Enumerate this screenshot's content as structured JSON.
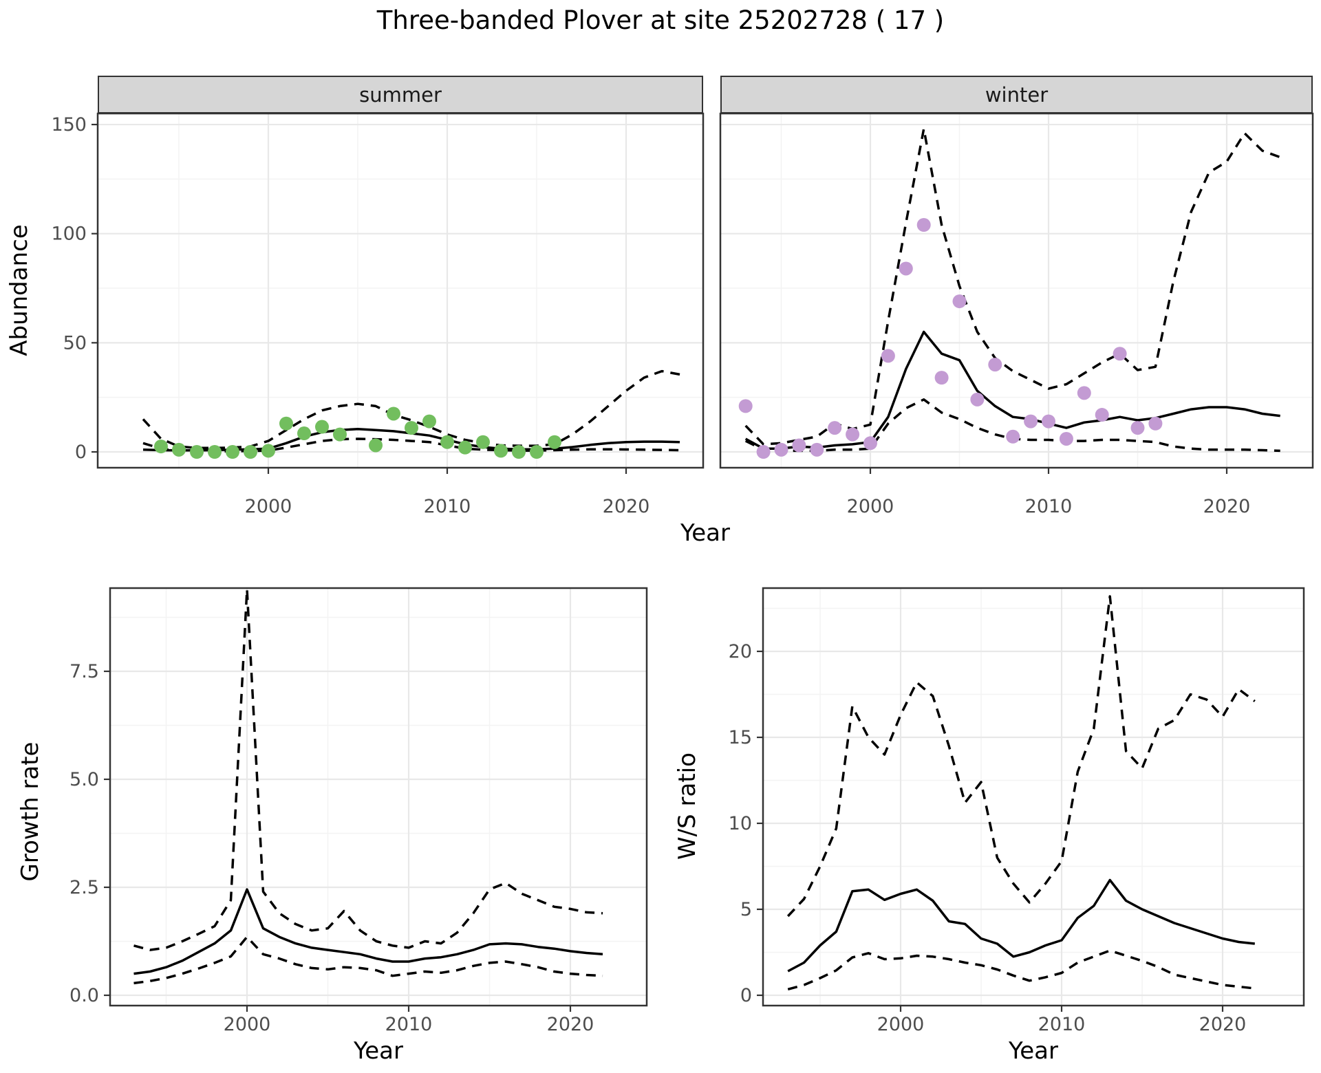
{
  "title": "Three-banded Plover at site 25202728 ( 17 )",
  "colors": {
    "summer_point": "#72be5e",
    "winter_point": "#c39bd3",
    "line": "#000000",
    "strip_bg": "#d6d6d6",
    "grid_major": "#e8e8e8",
    "grid_minor": "#f3f3f3",
    "axis_text": "#4d4d4d",
    "panel_border": "#333333"
  },
  "facets": {
    "summer_label": "summer",
    "winter_label": "winter"
  },
  "axes": {
    "abundance_label": "Abundance",
    "year_label": "Year",
    "growth_label": "Growth rate",
    "ws_label": "W/S ratio"
  },
  "chart_data": [
    {
      "id": "abundance_summer",
      "type": "line",
      "facet": "summer",
      "xlabel": "Year",
      "ylabel": "Abundance",
      "xlim": [
        1990.5,
        2024.5
      ],
      "ylim": [
        -7.5,
        155.5
      ],
      "xticks": {
        "values": [
          2000,
          2010,
          2020
        ],
        "labels": [
          "2000",
          "2010",
          "2020"
        ]
      },
      "yticks": {
        "values": [
          0,
          50,
          100,
          150
        ],
        "labels": [
          "0",
          "50",
          "100",
          "150"
        ]
      },
      "grid": "on",
      "points": {
        "years": [
          1994,
          1995,
          1996,
          1997,
          1998,
          1999,
          2000,
          2001,
          2002,
          2003,
          2004,
          2006,
          2007,
          2008,
          2009,
          2010,
          2011,
          2012,
          2013,
          2014,
          2015,
          2016
        ],
        "values": [
          2.5,
          1,
          0,
          0,
          0,
          0,
          0.5,
          13,
          8.5,
          11.5,
          8,
          3,
          17.5,
          11,
          14,
          4.5,
          2,
          4.5,
          0.5,
          0,
          0,
          4.5
        ]
      },
      "fit": {
        "years": [
          1993,
          1994,
          1995,
          1996,
          1997,
          1998,
          1999,
          2000,
          2001,
          2002,
          2003,
          2004,
          2005,
          2006,
          2007,
          2008,
          2009,
          2010,
          2011,
          2012,
          2013,
          2014,
          2015,
          2016,
          2017,
          2018,
          2019,
          2020,
          2021,
          2022,
          2023
        ],
        "values": [
          1.0,
          0.8,
          0.7,
          0.7,
          0.8,
          1.0,
          1.2,
          1.5,
          4,
          7,
          9,
          10,
          10.5,
          10,
          9.5,
          8.5,
          7.5,
          5.5,
          3.5,
          2.2,
          1.5,
          1.2,
          1.2,
          1.5,
          2.2,
          3.2,
          4.0,
          4.5,
          4.7,
          4.7,
          4.5
        ]
      },
      "upper_ci": {
        "years": [
          1993,
          1994,
          1995,
          1996,
          1997,
          1998,
          1999,
          2000,
          2001,
          2002,
          2003,
          2004,
          2005,
          2006,
          2007,
          2008,
          2009,
          2010,
          2011,
          2012,
          2013,
          2014,
          2015,
          2016,
          2017,
          2018,
          2019,
          2020,
          2021,
          2022,
          2023
        ],
        "values": [
          15,
          6,
          2.5,
          1.8,
          1.8,
          2,
          2.5,
          5,
          10,
          15,
          19,
          21,
          22,
          21,
          17,
          14.5,
          11.5,
          8,
          5.5,
          4,
          3,
          2.8,
          2.8,
          3.5,
          8,
          14,
          21,
          28,
          34,
          37,
          35.5
        ]
      },
      "lower_ci": {
        "years": [
          1993,
          1994,
          1995,
          1996,
          1997,
          1998,
          1999,
          2000,
          2001,
          2002,
          2003,
          2004,
          2005,
          2006,
          2007,
          2008,
          2009,
          2010,
          2011,
          2012,
          2013,
          2014,
          2015,
          2016,
          2017,
          2018,
          2019,
          2020,
          2021,
          2022,
          2023
        ],
        "values": [
          4,
          1.5,
          0.3,
          0.2,
          0.2,
          0.3,
          0.4,
          0.6,
          2,
          3.5,
          5,
          5.8,
          6,
          5.8,
          5.5,
          5,
          4.5,
          3,
          1.5,
          1,
          0.8,
          0.6,
          0.6,
          0.8,
          1,
          1.2,
          1.2,
          1.1,
          1,
          0.9,
          0.8
        ]
      }
    },
    {
      "id": "abundance_winter",
      "type": "line",
      "facet": "winter",
      "xlabel": "Year",
      "ylabel": "Abundance",
      "xlim": [
        1991.5,
        2024.8
      ],
      "ylim": [
        -7.5,
        155.5
      ],
      "xticks": {
        "values": [
          2000,
          2010,
          2020
        ],
        "labels": [
          "2000",
          "2010",
          "2020"
        ]
      },
      "yticks": {
        "values": [
          0,
          50,
          100,
          150
        ],
        "labels": [
          "0",
          "50",
          "100",
          "150"
        ]
      },
      "grid": "on",
      "points": {
        "years": [
          1993,
          1994,
          1995,
          1996,
          1997,
          1998,
          1999,
          2000,
          2001,
          2002,
          2003,
          2004,
          2005,
          2006,
          2007,
          2008,
          2009,
          2010,
          2011,
          2012,
          2013,
          2014,
          2015,
          2016
        ],
        "values": [
          21,
          0,
          1,
          3,
          1,
          11,
          8,
          4,
          44,
          84,
          104,
          34,
          69,
          24,
          40,
          7,
          14,
          14,
          6,
          27,
          17,
          45,
          11,
          13
        ]
      },
      "fit": {
        "years": [
          1993,
          1994,
          1995,
          1996,
          1997,
          1998,
          1999,
          2000,
          2001,
          2002,
          2003,
          2004,
          2005,
          2006,
          2007,
          2008,
          2009,
          2010,
          2011,
          2012,
          2013,
          2014,
          2015,
          2016,
          2017,
          2018,
          2019,
          2020,
          2021,
          2022,
          2023
        ],
        "values": [
          6,
          1.5,
          1.5,
          2.5,
          2,
          3,
          3.5,
          4.5,
          16,
          38,
          55,
          45,
          42,
          28,
          21,
          16,
          15,
          13,
          11,
          13.5,
          14.5,
          16,
          14.5,
          15.5,
          17.5,
          19.5,
          20.5,
          20.5,
          19.5,
          17.5,
          16.5
        ]
      },
      "upper_ci": {
        "years": [
          1993,
          1994,
          1995,
          1996,
          1997,
          1998,
          1999,
          2000,
          2001,
          2002,
          2003,
          2004,
          2005,
          2006,
          2007,
          2008,
          2009,
          2010,
          2011,
          2012,
          2013,
          2014,
          2015,
          2016,
          2017,
          2018,
          2019,
          2020,
          2021,
          2022,
          2023
        ],
        "values": [
          12,
          3.5,
          4,
          5.5,
          7,
          13,
          10.5,
          12.5,
          60,
          105,
          148,
          104,
          76,
          55,
          43,
          37,
          33,
          29,
          31,
          36,
          41,
          45,
          37.5,
          39,
          78,
          110,
          128,
          133,
          146,
          138,
          135
        ]
      },
      "lower_ci": {
        "years": [
          1993,
          1994,
          1995,
          1996,
          1997,
          1998,
          1999,
          2000,
          2001,
          2002,
          2003,
          2004,
          2005,
          2006,
          2007,
          2008,
          2009,
          2010,
          2011,
          2012,
          2013,
          2014,
          2015,
          2016,
          2017,
          2018,
          2019,
          2020,
          2021,
          2022,
          2023
        ],
        "values": [
          5,
          1,
          0.5,
          0.5,
          0.5,
          1,
          1,
          1.5,
          13,
          20,
          24,
          18,
          15,
          11,
          8,
          6,
          5.5,
          5.5,
          5,
          5,
          5.5,
          5.5,
          5,
          4.5,
          2.5,
          1.5,
          1,
          1,
          1,
          0.8,
          0.5
        ]
      }
    },
    {
      "id": "growth_rate",
      "type": "line",
      "xlabel": "Year",
      "ylabel": "Growth rate",
      "xlim": [
        1991.5,
        2024.7
      ],
      "ylim": [
        -0.2,
        9.6
      ],
      "xticks": {
        "values": [
          2000,
          2010,
          2020
        ],
        "labels": [
          "2000",
          "2010",
          "2020"
        ]
      },
      "yticks": {
        "values": [
          0.0,
          2.5,
          5.0,
          7.5
        ],
        "labels": [
          "0.0",
          "2.5",
          "5.0",
          "7.5"
        ]
      },
      "grid": "on",
      "fit": {
        "years": [
          1993,
          1994,
          1995,
          1996,
          1997,
          1998,
          1999,
          2000,
          2001,
          2002,
          2003,
          2004,
          2005,
          2006,
          2007,
          2008,
          2009,
          2010,
          2011,
          2012,
          2013,
          2014,
          2015,
          2016,
          2017,
          2018,
          2019,
          2020,
          2021,
          2022
        ],
        "values": [
          0.5,
          0.55,
          0.65,
          0.8,
          1.0,
          1.2,
          1.5,
          2.45,
          1.55,
          1.35,
          1.2,
          1.1,
          1.05,
          1.0,
          0.95,
          0.85,
          0.78,
          0.78,
          0.85,
          0.88,
          0.95,
          1.05,
          1.18,
          1.2,
          1.18,
          1.12,
          1.08,
          1.02,
          0.98,
          0.95
        ]
      },
      "upper_ci": {
        "years": [
          1993,
          1994,
          1995,
          1996,
          1997,
          1998,
          1999,
          2000,
          2001,
          2002,
          2003,
          2004,
          2005,
          2006,
          2007,
          2008,
          2009,
          2010,
          2011,
          2012,
          2013,
          2014,
          2015,
          2016,
          2017,
          2018,
          2019,
          2020,
          2021,
          2022
        ],
        "values": [
          1.15,
          1.05,
          1.1,
          1.25,
          1.42,
          1.6,
          2.2,
          9.4,
          2.4,
          1.9,
          1.65,
          1.5,
          1.55,
          1.95,
          1.5,
          1.25,
          1.15,
          1.1,
          1.25,
          1.2,
          1.45,
          1.9,
          2.45,
          2.6,
          2.35,
          2.2,
          2.05,
          2.0,
          1.92,
          1.9
        ]
      },
      "lower_ci": {
        "years": [
          1993,
          1994,
          1995,
          1996,
          1997,
          1998,
          1999,
          2000,
          2001,
          2002,
          2003,
          2004,
          2005,
          2006,
          2007,
          2008,
          2009,
          2010,
          2011,
          2012,
          2013,
          2014,
          2015,
          2016,
          2017,
          2018,
          2019,
          2020,
          2021,
          2022
        ],
        "values": [
          0.28,
          0.33,
          0.4,
          0.5,
          0.62,
          0.75,
          0.9,
          1.35,
          0.95,
          0.85,
          0.72,
          0.63,
          0.6,
          0.65,
          0.63,
          0.58,
          0.45,
          0.5,
          0.55,
          0.52,
          0.58,
          0.68,
          0.75,
          0.78,
          0.72,
          0.65,
          0.55,
          0.5,
          0.47,
          0.45
        ]
      }
    },
    {
      "id": "ws_ratio",
      "type": "line",
      "xlabel": "Year",
      "ylabel": "W/S ratio",
      "xlim": [
        1991.5,
        2025.0
      ],
      "ylim": [
        -0.6,
        23.7
      ],
      "xticks": {
        "values": [
          2000,
          2010,
          2020
        ],
        "labels": [
          "2000",
          "2010",
          "2020"
        ]
      },
      "yticks": {
        "values": [
          0,
          5,
          10,
          15,
          20
        ],
        "labels": [
          "0",
          "5",
          "10",
          "15",
          "20"
        ]
      },
      "grid": "on",
      "fit": {
        "years": [
          1993,
          1994,
          1995,
          1996,
          1997,
          1998,
          1999,
          2000,
          2001,
          2002,
          2003,
          2004,
          2005,
          2006,
          2007,
          2008,
          2009,
          2010,
          2011,
          2012,
          2013,
          2014,
          2015,
          2016,
          2017,
          2018,
          2019,
          2020,
          2021,
          2022
        ],
        "values": [
          1.4,
          1.9,
          2.9,
          3.7,
          6.05,
          6.15,
          5.55,
          5.9,
          6.15,
          5.5,
          4.3,
          4.15,
          3.3,
          3.0,
          2.25,
          2.5,
          2.9,
          3.2,
          4.5,
          5.2,
          6.7,
          5.5,
          5.0,
          4.6,
          4.2,
          3.9,
          3.6,
          3.3,
          3.1,
          3.0
        ]
      },
      "upper_ci": {
        "years": [
          1993,
          1994,
          1995,
          1996,
          1997,
          1998,
          1999,
          2000,
          2001,
          2002,
          2003,
          2004,
          2005,
          2006,
          2007,
          2008,
          2009,
          2010,
          2011,
          2012,
          2013,
          2014,
          2015,
          2016,
          2017,
          2018,
          2019,
          2020,
          2021,
          2022
        ],
        "values": [
          4.6,
          5.6,
          7.5,
          9.7,
          16.8,
          15.0,
          14.0,
          16.3,
          18.2,
          17.4,
          14.5,
          11.2,
          12.4,
          8.0,
          6.5,
          5.4,
          6.5,
          7.8,
          13.0,
          15.5,
          23.2,
          14.2,
          13.2,
          15.5,
          16.0,
          17.5,
          17.2,
          16.2,
          17.8,
          17.1
        ]
      },
      "lower_ci": {
        "years": [
          1993,
          1994,
          1995,
          1996,
          1997,
          1998,
          1999,
          2000,
          2001,
          2002,
          2003,
          2004,
          2005,
          2006,
          2007,
          2008,
          2009,
          2010,
          2011,
          2012,
          2013,
          2014,
          2015,
          2016,
          2017,
          2018,
          2019,
          2020,
          2021,
          2022
        ],
        "values": [
          0.35,
          0.6,
          1.0,
          1.45,
          2.2,
          2.45,
          2.1,
          2.15,
          2.3,
          2.25,
          2.1,
          1.9,
          1.75,
          1.5,
          1.15,
          0.85,
          1.05,
          1.3,
          1.9,
          2.25,
          2.6,
          2.3,
          2.0,
          1.65,
          1.2,
          1.0,
          0.8,
          0.6,
          0.5,
          0.4
        ]
      }
    }
  ]
}
